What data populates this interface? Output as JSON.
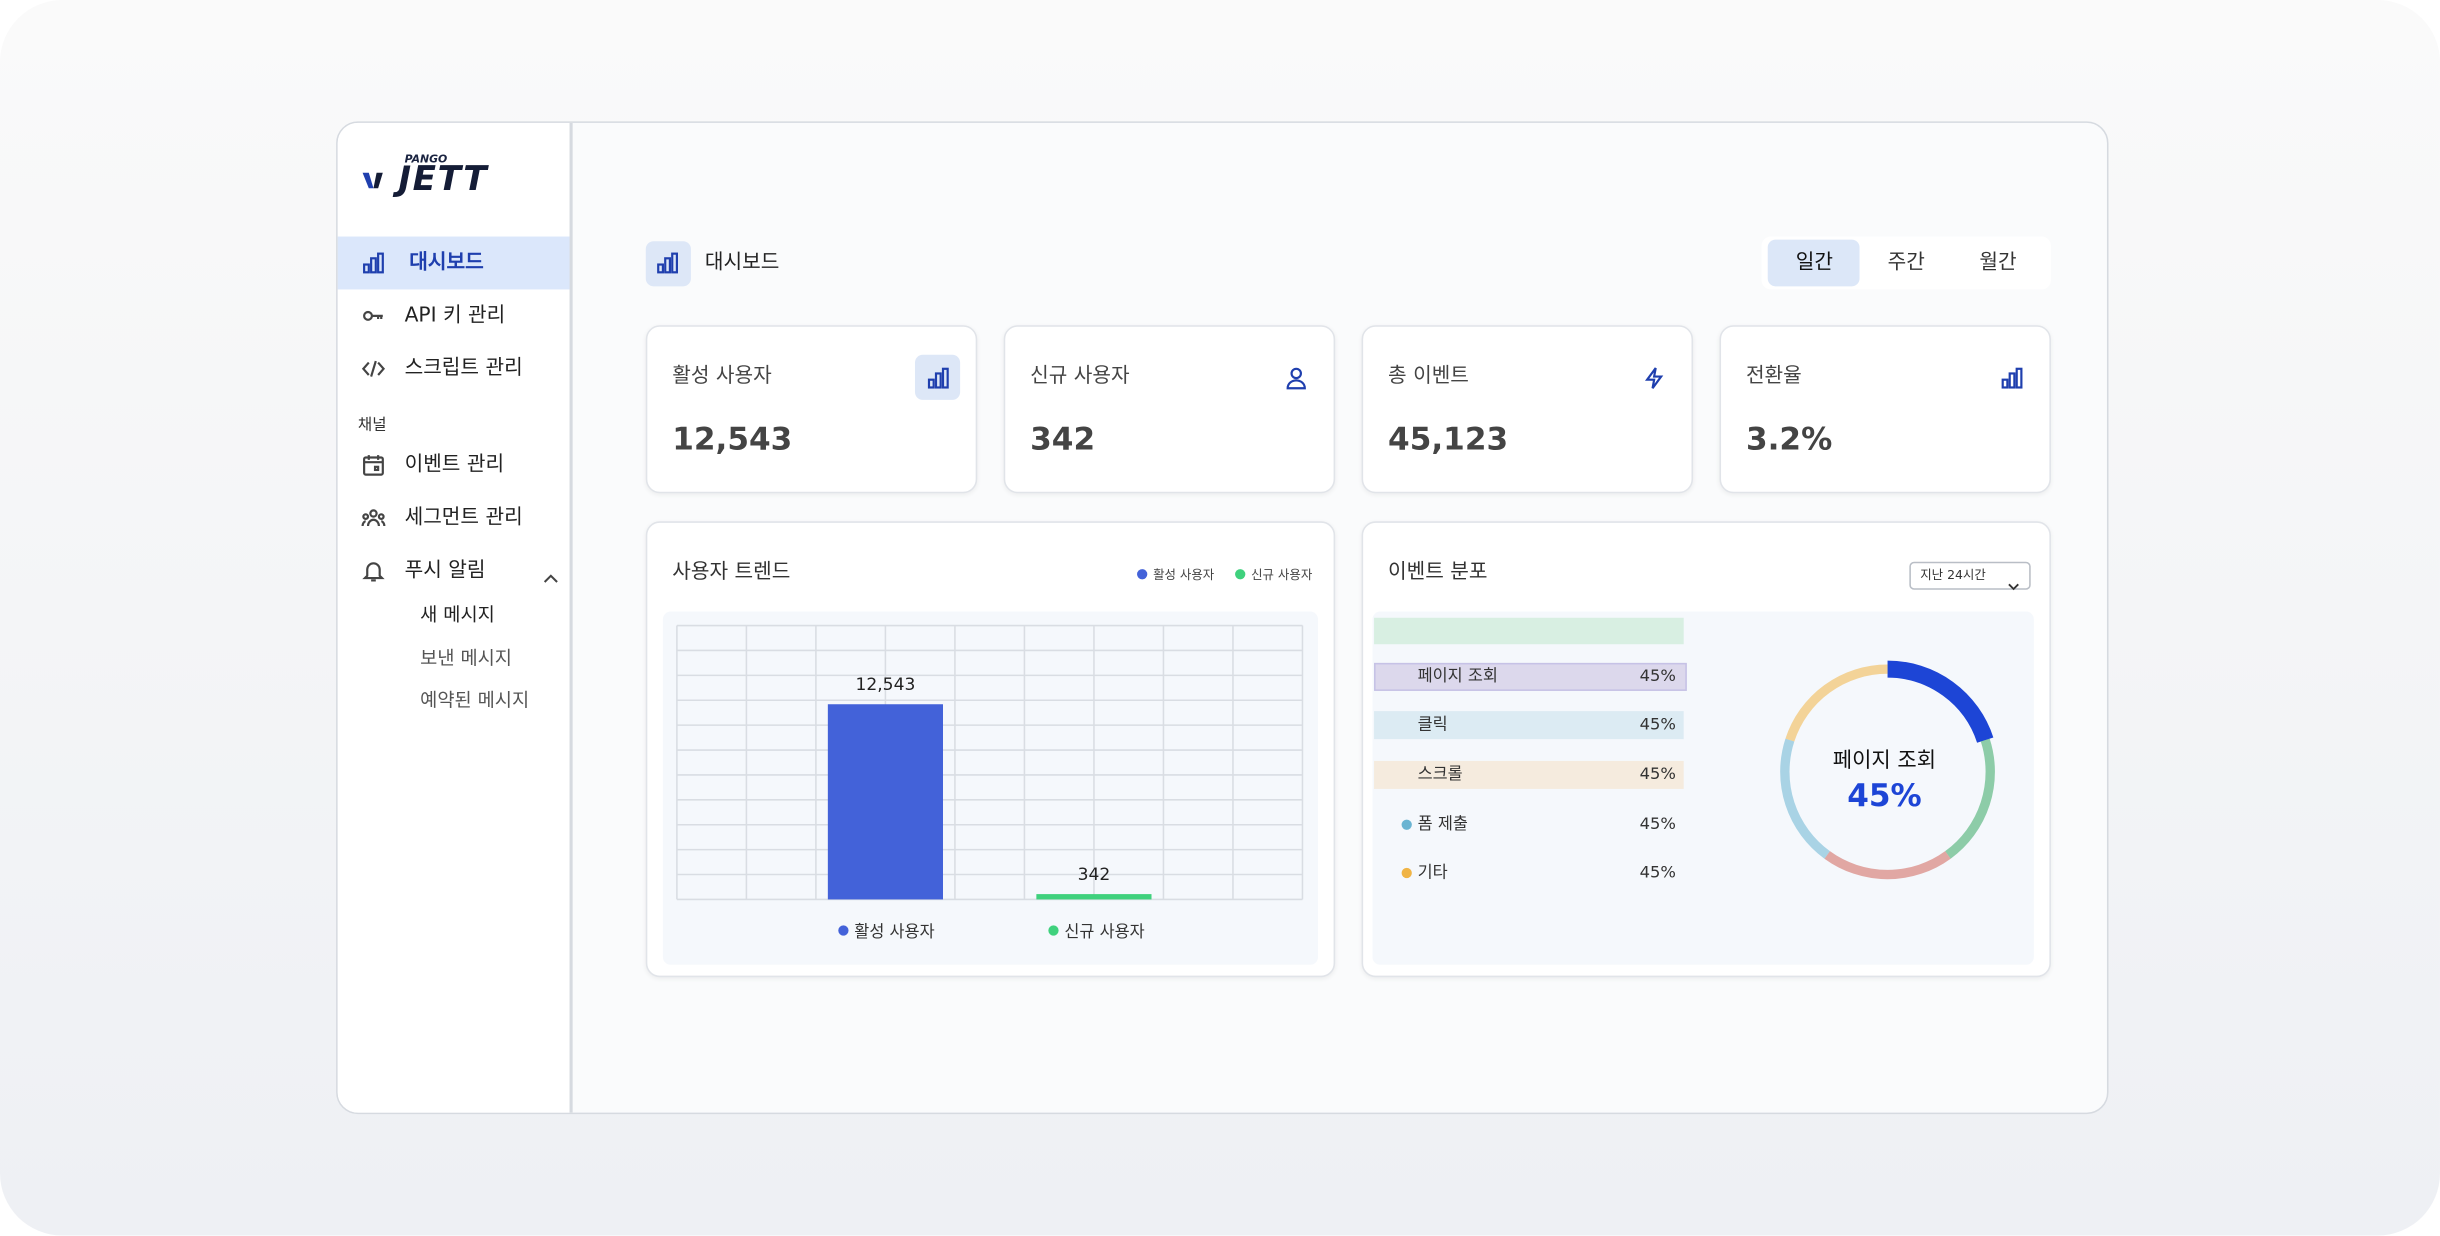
{
  "logo": {
    "brand": "PANGO",
    "name": "JETT"
  },
  "nav": {
    "items": [
      "대시보드",
      "API 키 관리",
      "스크립트 관리"
    ],
    "section": "채널",
    "channel_items": [
      "이벤트 관리",
      "세그먼트 관리",
      "푸시 알림"
    ],
    "push_subitems": [
      "새 메시지",
      "보낸 메시지",
      "예약된 메시지"
    ]
  },
  "header": {
    "title": "대시보드",
    "periods": [
      "일간",
      "주간",
      "월간"
    ]
  },
  "stats": [
    {
      "label": "활성 사용자",
      "value": "12,543"
    },
    {
      "label": "신규 사용자",
      "value": "342"
    },
    {
      "label": "총 이벤트",
      "value": "45,123"
    },
    {
      "label": "전환율",
      "value": "3.2%"
    }
  ],
  "chart_data": [
    {
      "type": "bar",
      "title": "사용자 트렌드",
      "ylim": [
        0,
        17600
      ],
      "series": [
        {
          "name": "활성 사용자",
          "color": "#4362d9",
          "values": [
            12543
          ],
          "value_labels": [
            "12,543"
          ]
        },
        {
          "name": "신규 사용자",
          "color": "#3fd17d",
          "values": [
            342
          ]
        }
      ]
    },
    {
      "type": "donut",
      "title": "이벤트 분포",
      "filter": "지난 24시간",
      "center": {
        "label": "페이지 조회",
        "value_label": "45%"
      },
      "categories": [
        "페이지 조회",
        "클릭",
        "스크롤",
        "폼 제출",
        "기타"
      ],
      "values": [
        45,
        45,
        45,
        45,
        45
      ],
      "value_labels": [
        "45%",
        "45%",
        "45%",
        "45%",
        "45%"
      ],
      "colors": [
        "#1d45d6",
        "#36a863",
        "#d0655a",
        "#6ab4d2",
        "#f0b445"
      ]
    }
  ]
}
